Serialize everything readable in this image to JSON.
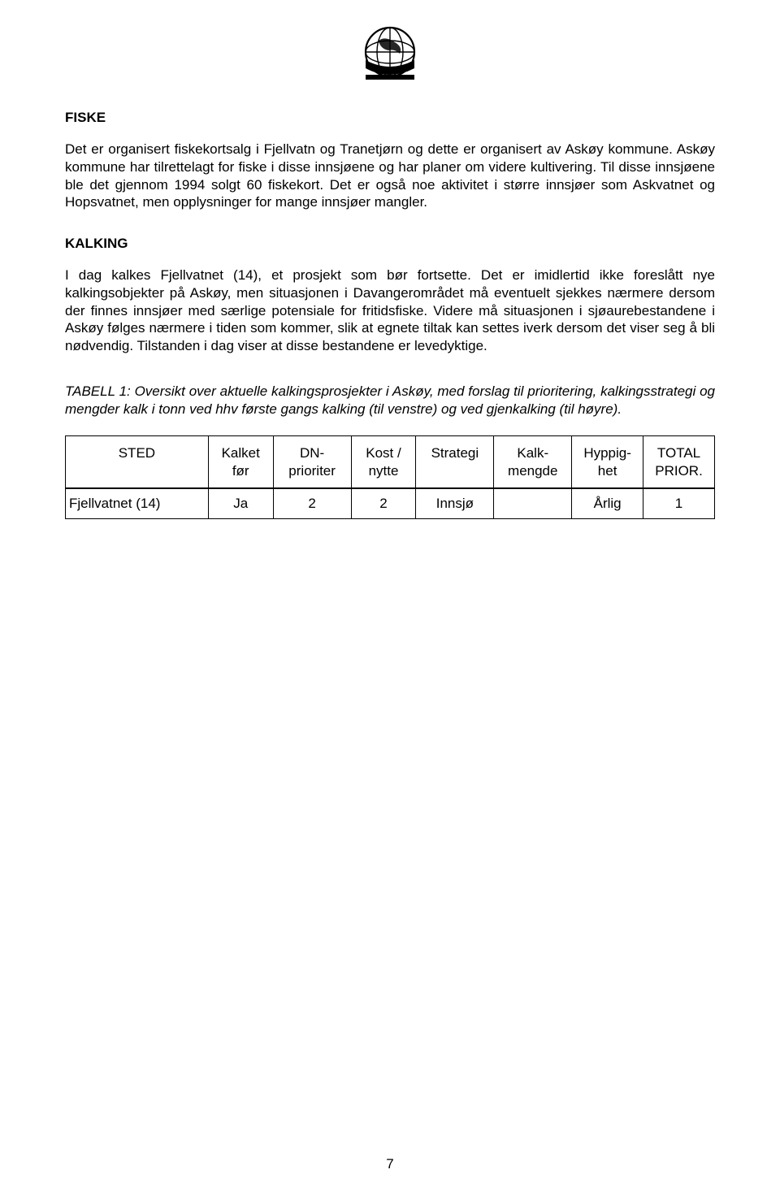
{
  "logo": {
    "name": "globe-grid-icon",
    "stroke": "#000000",
    "fill_water": "#000000",
    "fill_land": "#000000",
    "width": 68,
    "height": 72
  },
  "sections": {
    "fiske": {
      "heading": "FISKE",
      "paragraph": "Det er organisert fiskekortsalg i Fjellvatn og Tranetjørn og dette er organisert av Askøy kommune. Askøy kommune har tilrettelagt for fiske i disse innsjøene og har planer om videre kultivering. Til disse innsjøene ble det gjennom 1994 solgt 60 fiskekort. Det er også noe aktivitet i større innsjøer som Askvatnet og Hopsvatnet, men opplysninger for mange innsjøer mangler."
    },
    "kalking": {
      "heading": "KALKING",
      "paragraph": "I dag kalkes Fjellvatnet (14), et prosjekt som bør fortsette. Det er imidlertid ikke foreslått nye kalkingsobjekter på Askøy, men situasjonen i Davangerområdet må eventuelt sjekkes nærmere dersom der finnes innsjøer med særlige potensiale for fritidsfiske. Videre må situasjonen i sjøaurebestandene i Askøy følges nærmere i tiden som kommer, slik at egnete tiltak kan settes iverk dersom det viser seg å bli nødvendig. Tilstanden i dag viser at disse bestandene er levedyktige."
    }
  },
  "table": {
    "caption": "TABELL 1: Oversikt over aktuelle kalkingsprosjekter i Askøy, med forslag til prioritering, kalkingsstrategi og mengder kalk i tonn ved hhv første gangs kalking (til venstre) og ved gjenkalking (til høyre).",
    "columns": [
      {
        "label_line1": "STED",
        "label_line2": "",
        "width": "22%"
      },
      {
        "label_line1": "Kalket",
        "label_line2": "før",
        "width": "10%"
      },
      {
        "label_line1": "DN-",
        "label_line2": "prioriter",
        "width": "12%"
      },
      {
        "label_line1": "Kost /",
        "label_line2": "nytte",
        "width": "10%"
      },
      {
        "label_line1": "Strategi",
        "label_line2": "",
        "width": "12%"
      },
      {
        "label_line1": "Kalk-",
        "label_line2": "mengde",
        "width": "12%"
      },
      {
        "label_line1": "Hyppig-",
        "label_line2": "het",
        "width": "11%"
      },
      {
        "label_line1": "TOTAL",
        "label_line2": "PRIOR.",
        "width": "11%"
      }
    ],
    "rows": [
      [
        "Fjellvatnet (14)",
        "Ja",
        "2",
        "2",
        "Innsjø",
        "",
        "Årlig",
        "1"
      ]
    ]
  },
  "page_number": "7"
}
